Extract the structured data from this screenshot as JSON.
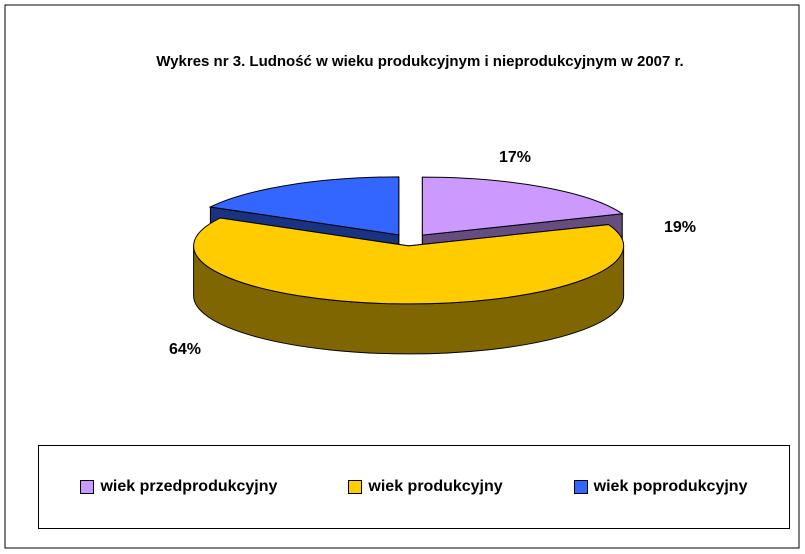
{
  "chart_data": {
    "type": "pie",
    "title": "Wykres nr 3. Ludność w wieku produkcyjnym i nieprodukcyjnym w 2007 r.",
    "categories": [
      "wiek przedprodukcyjny",
      "wiek produkcyjny",
      "wiek poprodukcyjny"
    ],
    "values": [
      19,
      64,
      17
    ],
    "value_labels": [
      "19%",
      "64%",
      "17%"
    ],
    "colors": [
      "#cc99ff",
      "#ffcc00",
      "#3366ff"
    ],
    "legend": "bottom"
  }
}
